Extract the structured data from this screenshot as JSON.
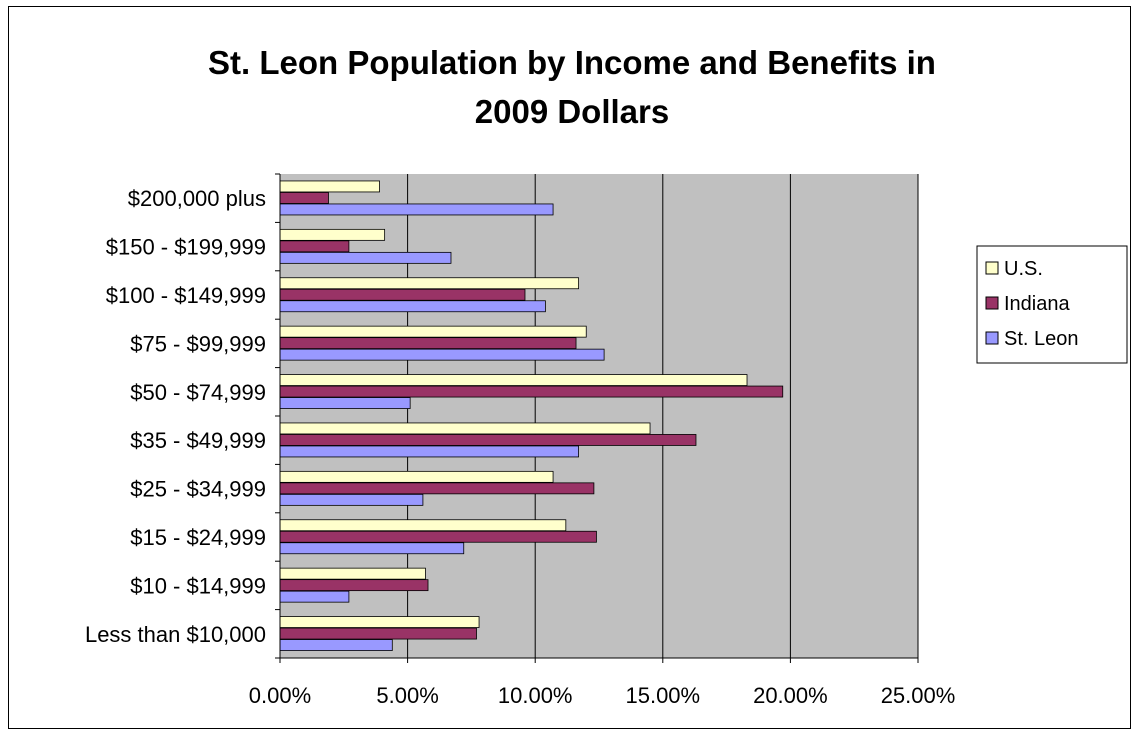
{
  "chart_data": {
    "type": "bar",
    "orientation": "horizontal",
    "title": "St. Leon Population by Income and Benefits in 2009 Dollars",
    "title_lines": [
      "St. Leon Population by Income and Benefits in",
      "2009 Dollars"
    ],
    "categories": [
      "$200,000 plus",
      "$150 - $199,999",
      "$100 - $149,999",
      "$75 - $99,999",
      "$50 - $74,999",
      "$35 - $49,999",
      "$25 - $34,999",
      "$15 - $24,999",
      "$10 - $14,999",
      "Less than $10,000"
    ],
    "series": [
      {
        "name": "U.S.",
        "color": "#FFFFCC",
        "values": [
          3.9,
          4.1,
          11.7,
          12.0,
          18.3,
          14.5,
          10.7,
          11.2,
          5.7,
          7.8
        ]
      },
      {
        "name": "Indiana",
        "color": "#993366",
        "values": [
          1.9,
          2.7,
          9.6,
          11.6,
          19.7,
          16.3,
          12.3,
          12.4,
          5.8,
          7.7
        ]
      },
      {
        "name": "St. Leon",
        "color": "#9999FF",
        "values": [
          10.7,
          6.7,
          10.4,
          12.7,
          5.1,
          11.7,
          5.6,
          7.2,
          2.7,
          4.4
        ]
      }
    ],
    "xlim": [
      0,
      25
    ],
    "xticks": [
      "0.00%",
      "5.00%",
      "10.00%",
      "15.00%",
      "20.00%",
      "25.00%"
    ],
    "grid": true,
    "plot_background": "#C0C0C0",
    "legend_position": "right"
  }
}
